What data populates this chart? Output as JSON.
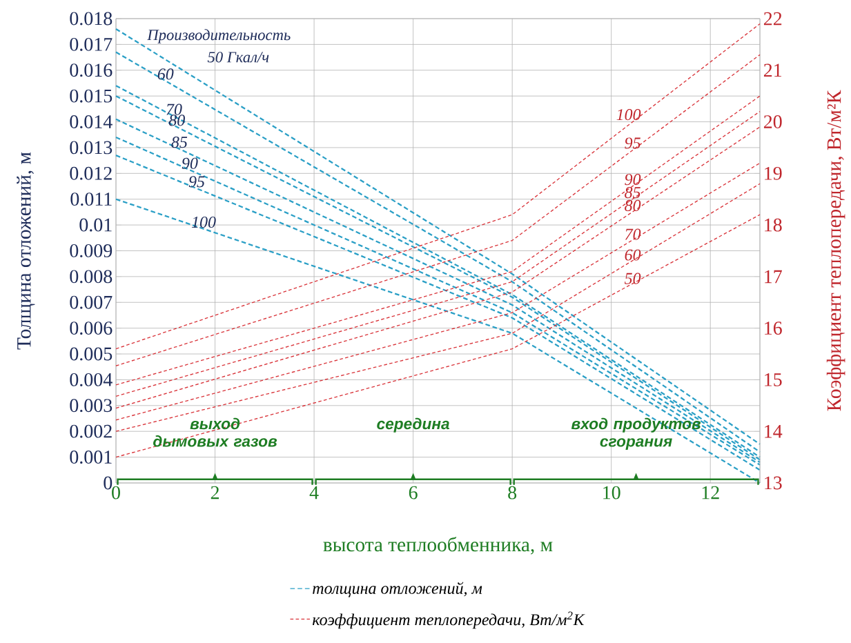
{
  "chart_data": {
    "type": "line",
    "xlabel": "высота теплообменника, м",
    "ylabel": "Толщина отложений, м",
    "y2label": "Коэффициент теплопередачи, Вт/м²К",
    "x": [
      0,
      8,
      13
    ],
    "series": [
      {
        "name": "толщина отложений, м",
        "color": "#2a9fc6",
        "values": [
          0.0176,
          0.0081,
          0.0015
        ]
      },
      {
        "color": "#2a9fc6",
        "values": [
          0.0167,
          0.0078,
          0.0012
        ]
      },
      {
        "color": "#2a9fc6",
        "values": [
          0.0154,
          0.0073,
          0.001
        ]
      },
      {
        "color": "#2a9fc6",
        "values": [
          0.015,
          0.0072,
          0.0009
        ]
      },
      {
        "color": "#2a9fc6",
        "values": [
          0.0141,
          0.0069,
          0.0008
        ]
      },
      {
        "color": "#2a9fc6",
        "values": [
          0.0134,
          0.0066,
          0.0007
        ]
      },
      {
        "color": "#2a9fc6",
        "values": [
          0.0127,
          0.0064,
          0.0005
        ]
      },
      {
        "color": "#2a9fc6",
        "values": [
          0.011,
          0.0058,
          0.0
        ]
      },
      {
        "name": "коэффициент теплопередачи, Вт/м$^{2}$К",
        "color": "#d9343a",
        "axis": "y2",
        "values": [
          15.6,
          18.2,
          21.9
        ]
      },
      {
        "color": "#d9343a",
        "axis": "y2",
        "values": [
          15.27,
          17.7,
          21.3
        ]
      },
      {
        "color": "#d9343a",
        "axis": "y2",
        "values": [
          14.9,
          17.1,
          20.5
        ]
      },
      {
        "color": "#d9343a",
        "axis": "y2",
        "values": [
          14.68,
          16.9,
          20.2
        ]
      },
      {
        "color": "#d9343a",
        "axis": "y2",
        "values": [
          14.45,
          16.7,
          19.9
        ]
      },
      {
        "color": "#d9343a",
        "axis": "y2",
        "values": [
          14.22,
          16.3,
          19.2
        ]
      },
      {
        "color": "#d9343a",
        "axis": "y2",
        "values": [
          14.0,
          15.9,
          18.8
        ]
      },
      {
        "color": "#d9343a",
        "axis": "y2",
        "values": [
          13.5,
          15.6,
          18.2
        ]
      }
    ],
    "xlim": [
      0,
      13
    ],
    "xticks": [
      0,
      2,
      4,
      6,
      8,
      10,
      12
    ],
    "ylim": [
      0,
      0.018
    ],
    "yticks": [
      0,
      0.001,
      0.002,
      0.003,
      0.004,
      0.005,
      0.006,
      0.007,
      0.008,
      0.009,
      0.01,
      0.011,
      0.012,
      0.013,
      0.014,
      0.015,
      0.016,
      0.017,
      0.018
    ],
    "y2lim": [
      13,
      22
    ],
    "y2ticks": [
      13,
      14,
      15,
      16,
      17,
      18,
      19,
      20,
      21,
      22
    ],
    "grid": true,
    "legend": "bottom",
    "marker": "none",
    "line_style": "dashed",
    "annotations": [
      "Производительность",
      "50 Гкал/ч",
      {
        "text": "60",
        "x": 1.0,
        "y": 0.01559
      },
      {
        "text": "70",
        "x": 1.17,
        "y": 0.01422
      },
      {
        "text": "80",
        "x": 1.23,
        "y": 0.0138
      },
      {
        "text": "85",
        "x": 1.28,
        "y": 0.01295
      },
      {
        "text": "90",
        "x": 1.49,
        "y": 0.01213
      },
      {
        "text": "95",
        "x": 1.63,
        "y": 0.01142
      },
      {
        "text": "100",
        "x": 1.77,
        "y": 0.00985
      },
      "100",
      "95",
      "90",
      "85",
      "80",
      "70",
      "60",
      "50",
      "выход дымовых газов",
      "середина",
      "вход продуктов сгорания"
    ]
  }
}
